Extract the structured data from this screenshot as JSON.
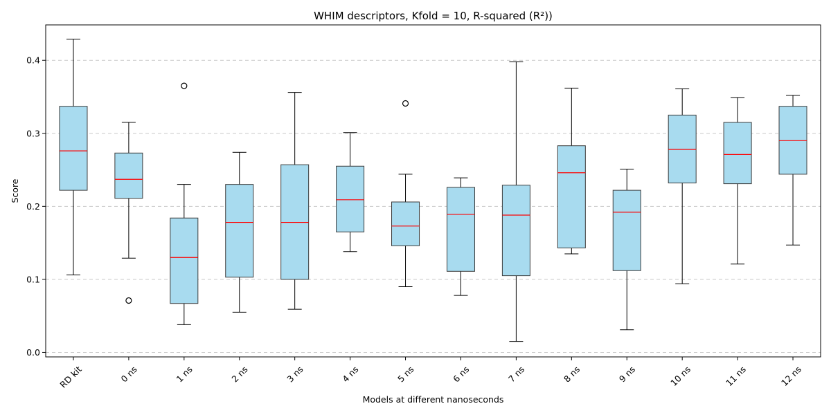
{
  "chart_data": {
    "type": "box",
    "title": "WHIM descriptors, Kfold = 10, R-squared (R²))",
    "xlabel": "Models at different nanoseconds",
    "ylabel": "Score",
    "ylim": [
      -0.0062,
      0.4485
    ],
    "yticks": [
      0.0,
      0.1,
      0.2,
      0.3,
      0.4
    ],
    "ytick_labels": [
      "0.0",
      "0.1",
      "0.2",
      "0.3",
      "0.4"
    ],
    "grid": "horizontal-dashed",
    "colors": {
      "box_fill": "#a8dbef",
      "box_edge": "#3a3a3a",
      "median": "#ff0000",
      "whisker": "#000000",
      "grid": "#c8c8c8"
    },
    "categories": [
      "RD kit",
      "0 ns",
      "1 ns",
      "2 ns",
      "3 ns",
      "4 ns",
      "5 ns",
      "6 ns",
      "7 ns",
      "8 ns",
      "9 ns",
      "10 ns",
      "11 ns",
      "12 ns"
    ],
    "boxes": [
      {
        "whisker_low": 0.106,
        "q1": 0.222,
        "median": 0.276,
        "q3": 0.337,
        "whisker_high": 0.429,
        "outliers": []
      },
      {
        "whisker_low": 0.129,
        "q1": 0.211,
        "median": 0.237,
        "q3": 0.273,
        "whisker_high": 0.315,
        "outliers": [
          0.071
        ]
      },
      {
        "whisker_low": 0.038,
        "q1": 0.067,
        "median": 0.13,
        "q3": 0.184,
        "whisker_high": 0.23,
        "outliers": [
          0.365
        ]
      },
      {
        "whisker_low": 0.055,
        "q1": 0.103,
        "median": 0.178,
        "q3": 0.23,
        "whisker_high": 0.274,
        "outliers": []
      },
      {
        "whisker_low": 0.059,
        "q1": 0.1,
        "median": 0.178,
        "q3": 0.257,
        "whisker_high": 0.356,
        "outliers": []
      },
      {
        "whisker_low": 0.138,
        "q1": 0.165,
        "median": 0.209,
        "q3": 0.255,
        "whisker_high": 0.301,
        "outliers": []
      },
      {
        "whisker_low": 0.09,
        "q1": 0.146,
        "median": 0.173,
        "q3": 0.206,
        "whisker_high": 0.244,
        "outliers": [
          0.341
        ]
      },
      {
        "whisker_low": 0.078,
        "q1": 0.111,
        "median": 0.189,
        "q3": 0.226,
        "whisker_high": 0.239,
        "outliers": []
      },
      {
        "whisker_low": 0.015,
        "q1": 0.105,
        "median": 0.188,
        "q3": 0.229,
        "whisker_high": 0.398,
        "outliers": []
      },
      {
        "whisker_low": 0.135,
        "q1": 0.143,
        "median": 0.246,
        "q3": 0.283,
        "whisker_high": 0.362,
        "outliers": []
      },
      {
        "whisker_low": 0.031,
        "q1": 0.112,
        "median": 0.192,
        "q3": 0.222,
        "whisker_high": 0.251,
        "outliers": []
      },
      {
        "whisker_low": 0.094,
        "q1": 0.232,
        "median": 0.278,
        "q3": 0.325,
        "whisker_high": 0.361,
        "outliers": []
      },
      {
        "whisker_low": 0.121,
        "q1": 0.231,
        "median": 0.271,
        "q3": 0.315,
        "whisker_high": 0.349,
        "outliers": []
      },
      {
        "whisker_low": 0.147,
        "q1": 0.244,
        "median": 0.29,
        "q3": 0.337,
        "whisker_high": 0.352,
        "outliers": []
      }
    ]
  }
}
